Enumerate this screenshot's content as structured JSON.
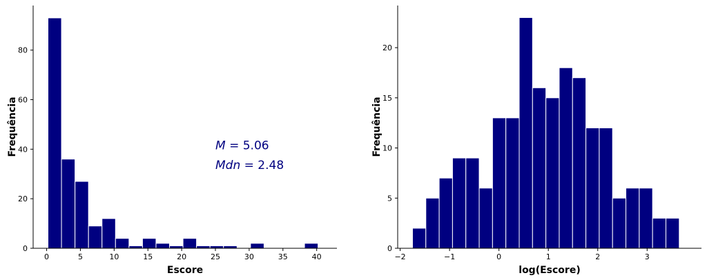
{
  "chart_data": [
    {
      "type": "bar",
      "xlabel": "Escore",
      "ylabel": "Frequência",
      "xlim": [
        -2,
        43
      ],
      "ylim": [
        0,
        98
      ],
      "xticks": [
        0,
        5,
        10,
        15,
        20,
        25,
        30,
        35,
        40
      ],
      "yticks": [
        0,
        20,
        40,
        60,
        80
      ],
      "bin_edges": [
        0.2,
        2.2,
        4.2,
        6.2,
        8.2,
        10.2,
        12.2,
        14.2,
        16.2,
        18.2,
        20.2,
        22.2,
        24.2,
        26.2,
        28.2,
        30.2,
        32.2,
        34.2,
        36.2,
        38.2,
        40.2
      ],
      "values": [
        93,
        36,
        27,
        9,
        12,
        4,
        1,
        4,
        2,
        1,
        4,
        1,
        1,
        1,
        0,
        2,
        0,
        0,
        0,
        2
      ],
      "bar_color": "#000080",
      "annotations": [
        {
          "italic": "M",
          "rest": " = 5.06",
          "x": 25,
          "y": 40,
          "color": "#000080"
        },
        {
          "italic": "Mdn",
          "rest": " = 2.48",
          "x": 25,
          "y": 32,
          "color": "#000080"
        }
      ]
    },
    {
      "type": "bar",
      "xlabel": "log(Escore)",
      "ylabel": "Frequência",
      "xlim": [
        -2.05,
        4.1
      ],
      "ylim": [
        0,
        24.2
      ],
      "xticks": [
        -2,
        -1,
        0,
        1,
        2,
        3
      ],
      "xtick_labels": [
        "−2",
        "−1",
        "0",
        "1",
        "2",
        "3"
      ],
      "yticks": [
        0,
        5,
        10,
        15,
        20
      ],
      "bin_edges": [
        -1.75,
        -1.48,
        -1.21,
        -0.94,
        -0.67,
        -0.4,
        -0.13,
        0.14,
        0.41,
        0.68,
        0.95,
        1.22,
        1.49,
        1.76,
        2.03,
        2.3,
        2.57,
        2.84,
        3.11,
        3.38,
        3.65
      ],
      "values": [
        2,
        5,
        7,
        9,
        9,
        6,
        13,
        13,
        23,
        16,
        15,
        18,
        17,
        12,
        12,
        5,
        6,
        6,
        3,
        3
      ],
      "bar_color": "#000080"
    }
  ]
}
